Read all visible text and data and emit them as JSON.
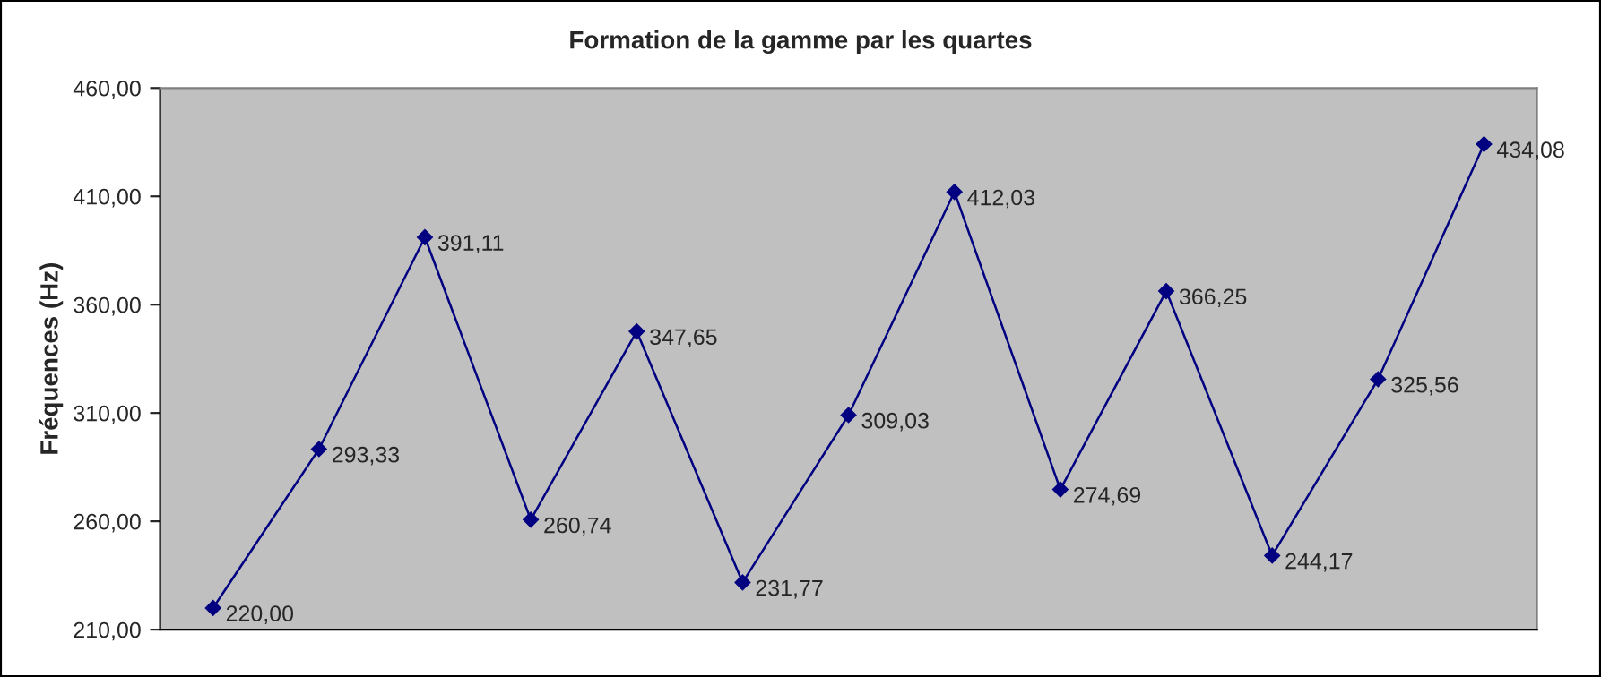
{
  "chart_data": {
    "type": "line",
    "title": "Formation de la gamme par les quartes",
    "ylabel": "Fréquences (Hz)",
    "categories": [
      null,
      null,
      null,
      null,
      null,
      null,
      null,
      null,
      null,
      null,
      null,
      null,
      null
    ],
    "series": [
      {
        "color": "#000080",
        "values": [
          220.0,
          293.33,
          391.11,
          260.74,
          347.65,
          231.77,
          309.03,
          412.03,
          274.69,
          366.25,
          244.17,
          325.56,
          434.08
        ],
        "value_labels": [
          "220,00",
          "293,33",
          "391,11",
          "260,74",
          "347,65",
          "231,77",
          "309,03",
          "412,03",
          "274,69",
          "366,25",
          "244,17",
          "325,56",
          "434,08"
        ]
      }
    ],
    "ylim": [
      210,
      460
    ],
    "yticks": [
      {
        "value": 210,
        "label": "210,00"
      },
      {
        "value": 260,
        "label": "260,00"
      },
      {
        "value": 310,
        "label": "310,00"
      },
      {
        "value": 360,
        "label": "360,00"
      },
      {
        "value": 410,
        "label": "410,00"
      },
      {
        "value": 460,
        "label": "460,00"
      }
    ],
    "marker": "diamond",
    "line_style": "solid",
    "grid": false,
    "legend": false
  }
}
